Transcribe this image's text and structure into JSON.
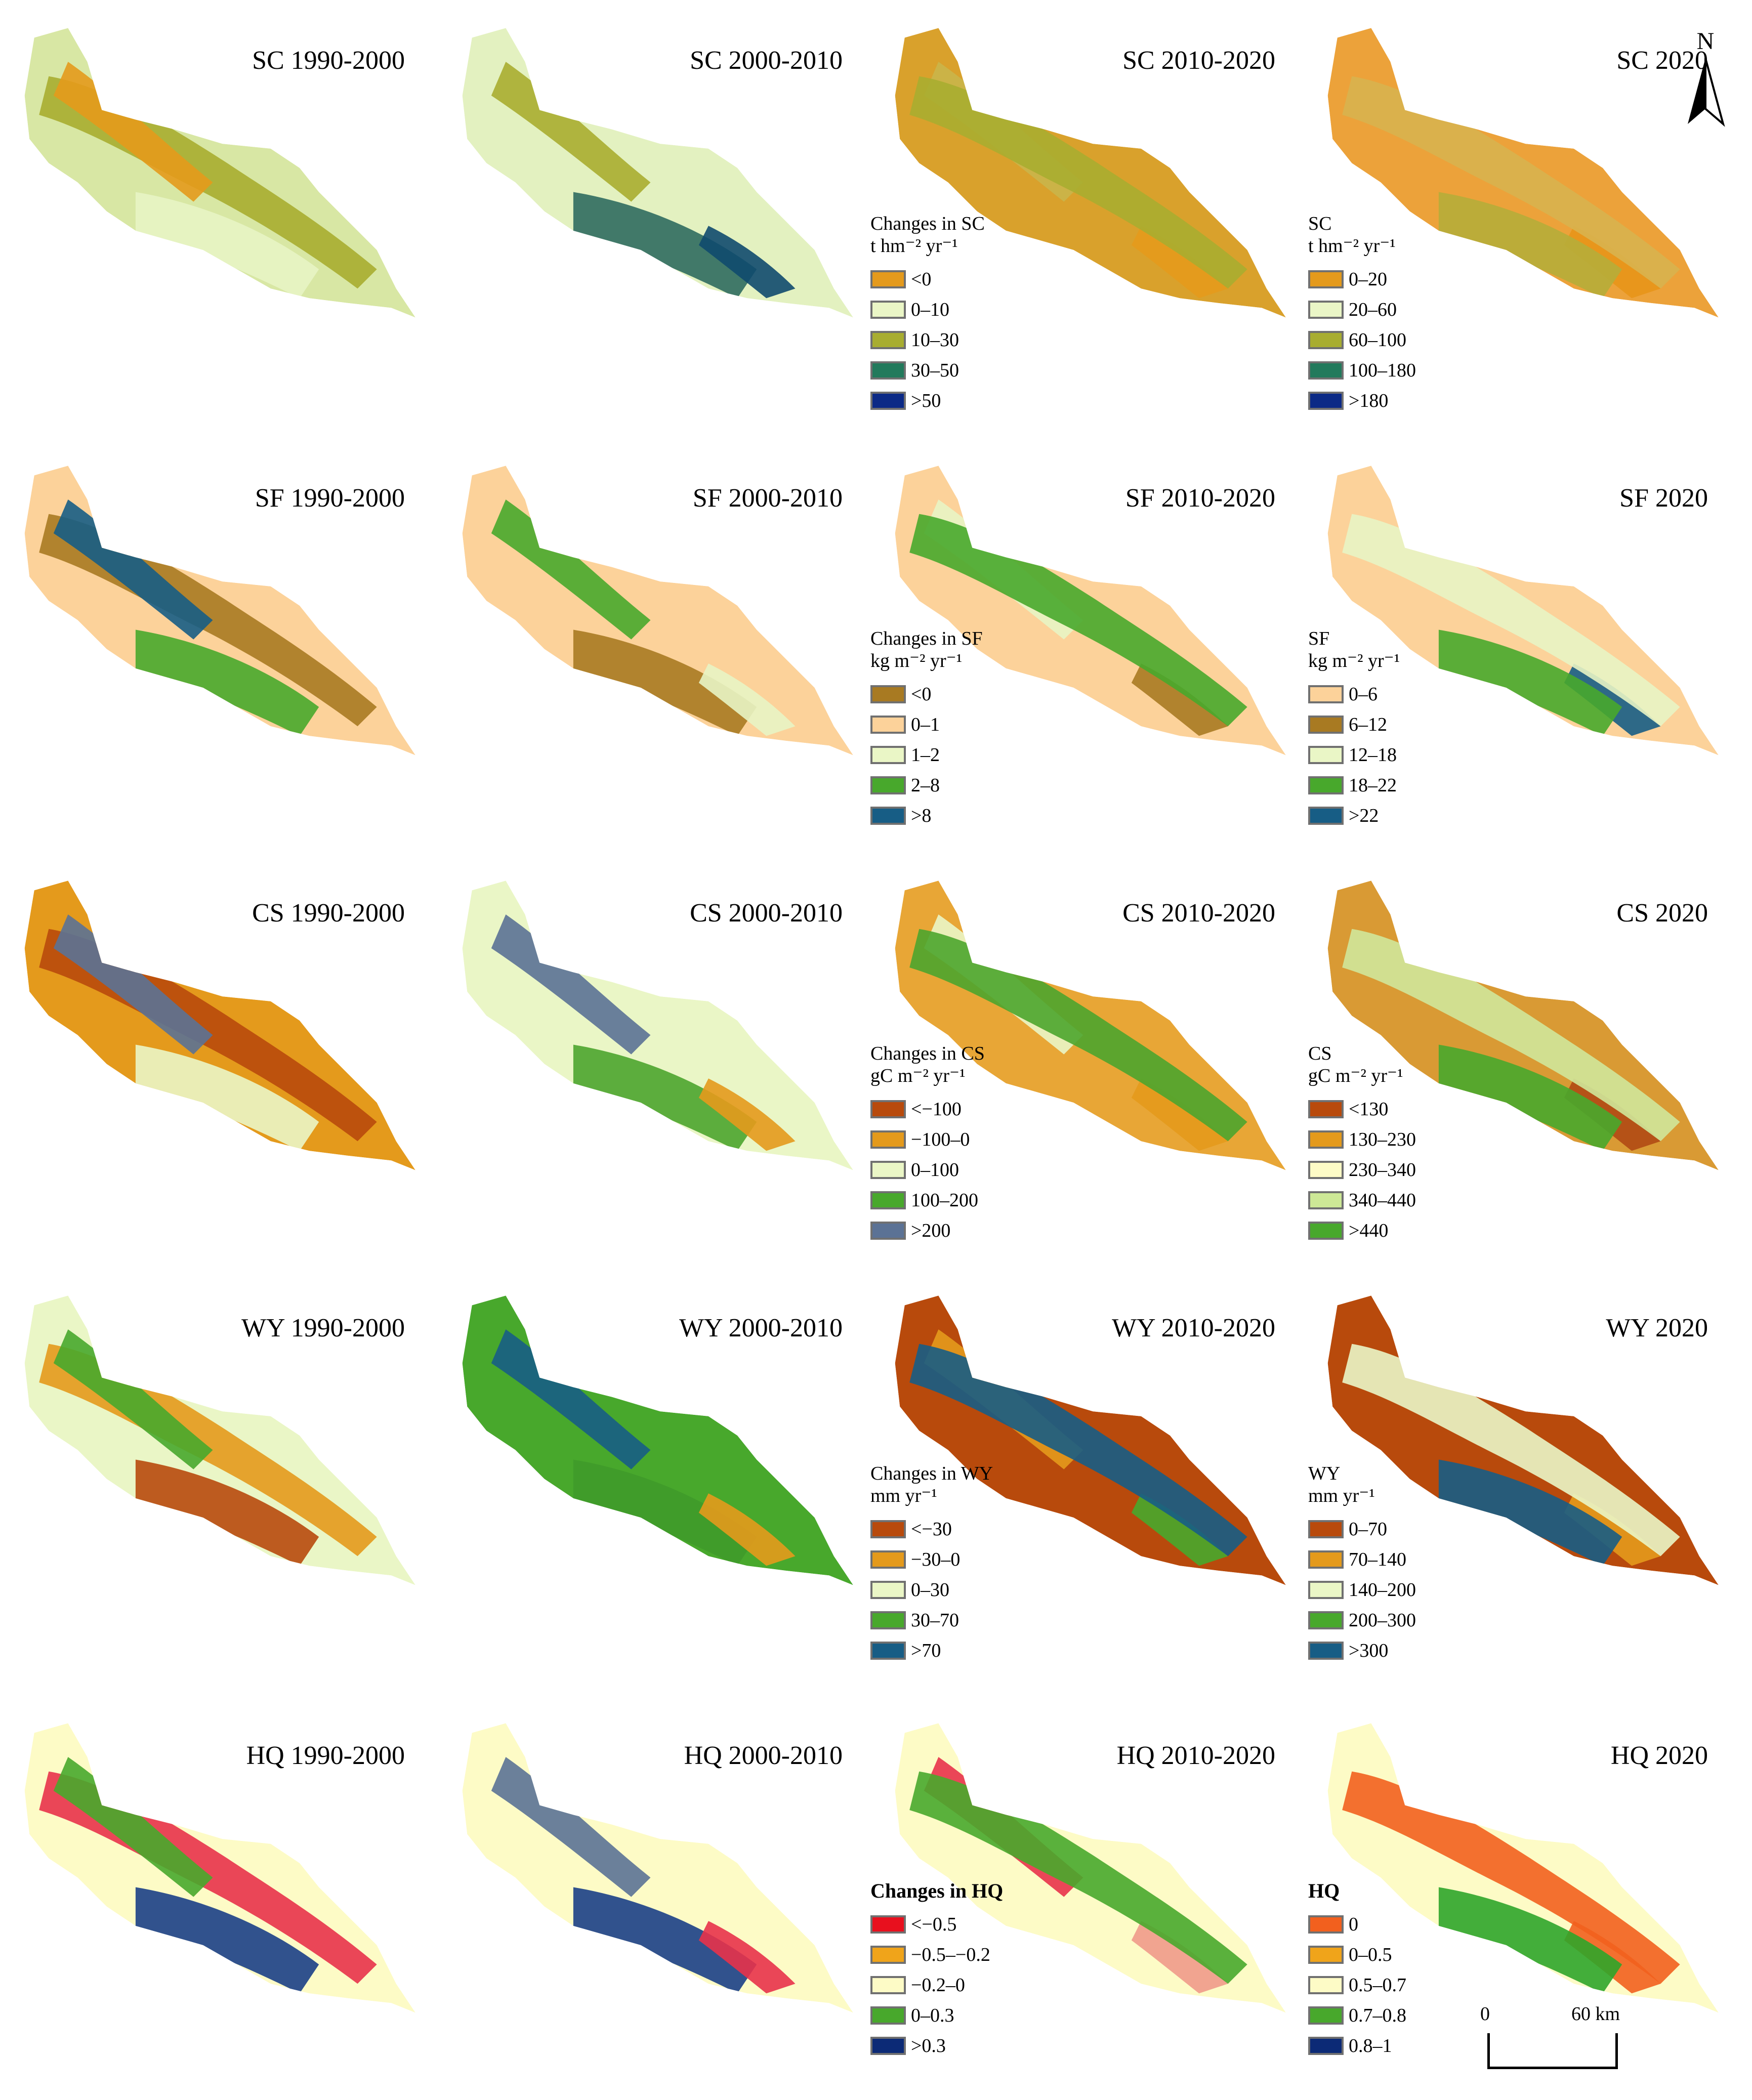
{
  "north_arrow": {
    "label": "N",
    "icon": "north-arrow-icon"
  },
  "scale_bar": {
    "start": "0",
    "end": "60 km"
  },
  "rows": [
    {
      "id": "sc",
      "panels": [
        {
          "title": "SC 1990-2000",
          "fill_colors": [
            "#d8e7a4",
            "#a8ad30",
            "#e8f4c4",
            "#e49a1c"
          ]
        },
        {
          "title": "SC 2000-2010",
          "fill_colors": [
            "#e3f1c0",
            "#2f6b5f",
            "#a8ad30",
            "#0f4a6e"
          ]
        },
        {
          "title": "SC 2010-2020",
          "fill_colors": [
            "#d9a12c",
            "#c9b54a",
            "#e49a1c",
            "#a8ad30"
          ]
        },
        {
          "title": "SC 2020",
          "fill_colors": [
            "#eca23a",
            "#e8951a",
            "#d8b24f",
            "#b6ad3a"
          ]
        }
      ],
      "legend_change": {
        "title_lines": [
          "Changes in SC",
          "t hm⁻² yr⁻¹"
        ],
        "items": [
          {
            "label": "<0",
            "color": "#e49a1c"
          },
          {
            "label": "0–10",
            "color": "#eaf6c6"
          },
          {
            "label": "10–30",
            "color": "#a8ad30"
          },
          {
            "label": "30–50",
            "color": "#227a5c"
          },
          {
            "label": ">50",
            "color": "#0c2a86"
          }
        ]
      },
      "legend_value": {
        "title_lines": [
          "SC",
          "t hm⁻² yr⁻¹"
        ],
        "items": [
          {
            "label": "0–20",
            "color": "#e49a1c"
          },
          {
            "label": "20–60",
            "color": "#eaf6c6"
          },
          {
            "label": "60–100",
            "color": "#a8ad30"
          },
          {
            "label": "100–180",
            "color": "#227a5c"
          },
          {
            "label": ">180",
            "color": "#0c2a86"
          }
        ]
      }
    },
    {
      "id": "sf",
      "panels": [
        {
          "title": "SF 1990-2000",
          "fill_colors": [
            "#fcd29a",
            "#a87a22",
            "#48a82c",
            "#175d85"
          ]
        },
        {
          "title": "SF 2000-2010",
          "fill_colors": [
            "#fcd29a",
            "#a87a22",
            "#48a82c",
            "#e8f4c4"
          ]
        },
        {
          "title": "SF 2010-2020",
          "fill_colors": [
            "#fcd29a",
            "#e8f4c4",
            "#a87a22",
            "#48a82c"
          ]
        },
        {
          "title": "SF 2020",
          "fill_colors": [
            "#fcd29a",
            "#175d85",
            "#e8f4c4",
            "#48a82c"
          ]
        }
      ],
      "legend_change": {
        "title_lines": [
          "Changes in SF",
          "kg m⁻² yr⁻¹"
        ],
        "items": [
          {
            "label": "<0",
            "color": "#a87a22"
          },
          {
            "label": "0–1",
            "color": "#fcd29a"
          },
          {
            "label": "1–2",
            "color": "#eaf6c6"
          },
          {
            "label": "2–8",
            "color": "#48a82c"
          },
          {
            "label": ">8",
            "color": "#175d85"
          }
        ]
      },
      "legend_value": {
        "title_lines": [
          "SF",
          "kg m⁻² yr⁻¹"
        ],
        "items": [
          {
            "label": "0–6",
            "color": "#fcd29a"
          },
          {
            "label": "6–12",
            "color": "#a87a22"
          },
          {
            "label": "12–18",
            "color": "#eaf6c6"
          },
          {
            "label": "18–22",
            "color": "#48a82c"
          },
          {
            "label": ">22",
            "color": "#175d85"
          }
        ]
      }
    },
    {
      "id": "cs",
      "panels": [
        {
          "title": "CS 1990-2000",
          "fill_colors": [
            "#e49a1c",
            "#b84a0c",
            "#eaf6c6",
            "#5b7295"
          ]
        },
        {
          "title": "CS 2000-2010",
          "fill_colors": [
            "#eaf6c6",
            "#4ca52e",
            "#5b7295",
            "#e49a1c"
          ]
        },
        {
          "title": "CS 2010-2020",
          "fill_colors": [
            "#e8a636",
            "#eaf6c6",
            "#e49a1c",
            "#4ca52e"
          ]
        },
        {
          "title": "CS 2020",
          "fill_colors": [
            "#d99a34",
            "#b04a14",
            "#cfe79a",
            "#48a82c"
          ]
        }
      ],
      "legend_change": {
        "title_lines": [
          "Changes in CS",
          "gC m⁻² yr⁻¹"
        ],
        "items": [
          {
            "label": "<−100",
            "color": "#b84a0c"
          },
          {
            "label": "−100–0",
            "color": "#e49a1c"
          },
          {
            "label": "0–100",
            "color": "#eaf6c6"
          },
          {
            "label": "100–200",
            "color": "#48a82c"
          },
          {
            "label": ">200",
            "color": "#5b7295"
          }
        ]
      },
      "legend_value": {
        "title_lines": [
          "CS",
          "gC m⁻² yr⁻¹"
        ],
        "items": [
          {
            "label": "<130",
            "color": "#b84a0c"
          },
          {
            "label": "130–230",
            "color": "#e49a1c"
          },
          {
            "label": "230–340",
            "color": "#fdfbc6"
          },
          {
            "label": "340–440",
            "color": "#cde896"
          },
          {
            "label": ">440",
            "color": "#48a82c"
          }
        ]
      }
    },
    {
      "id": "wy",
      "panels": [
        {
          "title": "WY 1990-2000",
          "fill_colors": [
            "#eaf6c6",
            "#e49a1c",
            "#b84a0c",
            "#48a82c"
          ]
        },
        {
          "title": "WY 2000-2010",
          "fill_colors": [
            "#48a82c",
            "#3f9a2a",
            "#175d85",
            "#e49a1c"
          ]
        },
        {
          "title": "WY 2010-2020",
          "fill_colors": [
            "#b84a0c",
            "#e49a1c",
            "#48a82c",
            "#175d85"
          ]
        },
        {
          "title": "WY 2020",
          "fill_colors": [
            "#b84a0c",
            "#e49a1c",
            "#eaf6c6",
            "#175d85"
          ]
        }
      ],
      "legend_change": {
        "title_lines": [
          "Changes in WY",
          "mm yr⁻¹"
        ],
        "items": [
          {
            "label": "<−30",
            "color": "#b84a0c"
          },
          {
            "label": "−30–0",
            "color": "#e49a1c"
          },
          {
            "label": "0–30",
            "color": "#eaf6c6"
          },
          {
            "label": "30–70",
            "color": "#48a82c"
          },
          {
            "label": ">70",
            "color": "#175d85"
          }
        ]
      },
      "legend_value": {
        "title_lines": [
          "WY",
          "mm yr⁻¹"
        ],
        "items": [
          {
            "label": "0–70",
            "color": "#b84a0c"
          },
          {
            "label": "70–140",
            "color": "#e49a1c"
          },
          {
            "label": "140–200",
            "color": "#eaf6c6"
          },
          {
            "label": "200–300",
            "color": "#48a82c"
          },
          {
            "label": ">300",
            "color": "#175d85"
          }
        ]
      }
    },
    {
      "id": "hq",
      "panels": [
        {
          "title": "HQ 1990-2000",
          "fill_colors": [
            "#fdfbc6",
            "#e8324a",
            "#1b3f86",
            "#48a82c"
          ]
        },
        {
          "title": "HQ 2000-2010",
          "fill_colors": [
            "#fdfbc6",
            "#1b3f86",
            "#5b7295",
            "#e8324a"
          ]
        },
        {
          "title": "HQ 2010-2020",
          "fill_colors": [
            "#fdfbc6",
            "#e8324a",
            "#f09a8a",
            "#48a82c"
          ]
        },
        {
          "title": "HQ 2020",
          "fill_colors": [
            "#fdfbc6",
            "#f2601e",
            "#f2601e",
            "#2fa52a"
          ]
        }
      ],
      "legend_change": {
        "title_lines": [
          "Changes in HQ"
        ],
        "bold_title": true,
        "items": [
          {
            "label": "<−0.5",
            "color": "#e8101e"
          },
          {
            "label": "−0.5–−0.2",
            "color": "#f0a41a"
          },
          {
            "label": "−0.2–0",
            "color": "#fdfbc6"
          },
          {
            "label": "0–0.3",
            "color": "#48a82c"
          },
          {
            "label": ">0.3",
            "color": "#0c2a76"
          }
        ]
      },
      "legend_value": {
        "title_lines": [
          "HQ"
        ],
        "bold_title": true,
        "items": [
          {
            "label": "0",
            "color": "#f2601e"
          },
          {
            "label": "0–0.5",
            "color": "#f0a41a"
          },
          {
            "label": "0.5–0.7",
            "color": "#fdfbc6"
          },
          {
            "label": "0.7–0.8",
            "color": "#48a82c"
          },
          {
            "label": "0.8–1",
            "color": "#0c2a76"
          }
        ]
      }
    }
  ]
}
